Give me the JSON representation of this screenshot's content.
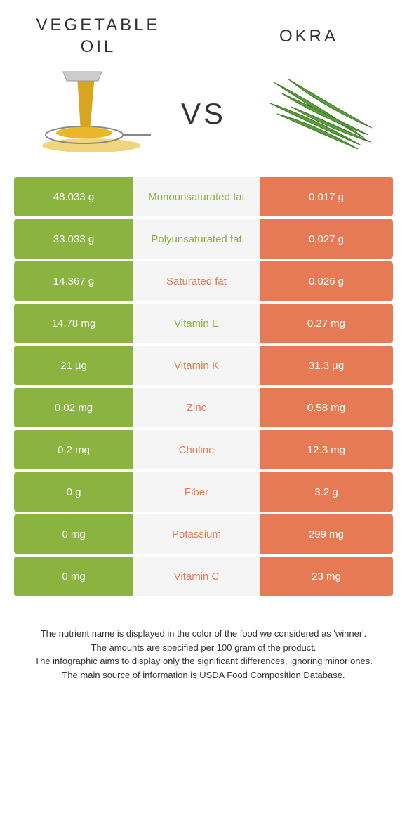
{
  "colors": {
    "green": "#8bb33f",
    "orange": "#e67a54",
    "mid_bg": "#f5f5f5",
    "text_dark": "#333333",
    "white": "#ffffff"
  },
  "header": {
    "left_title": "Vegetable oil",
    "right_title": "Okra",
    "vs_label": "VS"
  },
  "rows": [
    {
      "left": "48.033 g",
      "label": "Monounsaturated fat",
      "right": "0.017 g",
      "winner": "left"
    },
    {
      "left": "33.033 g",
      "label": "Polyunsaturated fat",
      "right": "0.027 g",
      "winner": "left"
    },
    {
      "left": "14.367 g",
      "label": "Saturated fat",
      "right": "0.026 g",
      "winner": "right"
    },
    {
      "left": "14.78 mg",
      "label": "Vitamin E",
      "right": "0.27 mg",
      "winner": "left"
    },
    {
      "left": "21 µg",
      "label": "Vitamin K",
      "right": "31.3 µg",
      "winner": "right"
    },
    {
      "left": "0.02 mg",
      "label": "Zinc",
      "right": "0.58 mg",
      "winner": "right"
    },
    {
      "left": "0.2 mg",
      "label": "Choline",
      "right": "12.3 mg",
      "winner": "right"
    },
    {
      "left": "0 g",
      "label": "Fiber",
      "right": "3.2 g",
      "winner": "right"
    },
    {
      "left": "0 mg",
      "label": "Potassium",
      "right": "299 mg",
      "winner": "right"
    },
    {
      "left": "0 mg",
      "label": "Vitamin C",
      "right": "23 mg",
      "winner": "right"
    }
  ],
  "footer": {
    "line1": "The nutrient name is displayed in the color of the food we considered as 'winner'.",
    "line2": "The amounts are specified per 100 gram of the product.",
    "line3": "The infographic aims to display only the significant differences, ignoring minor ones.",
    "line4": "The main source of information is USDA Food Composition Database."
  }
}
